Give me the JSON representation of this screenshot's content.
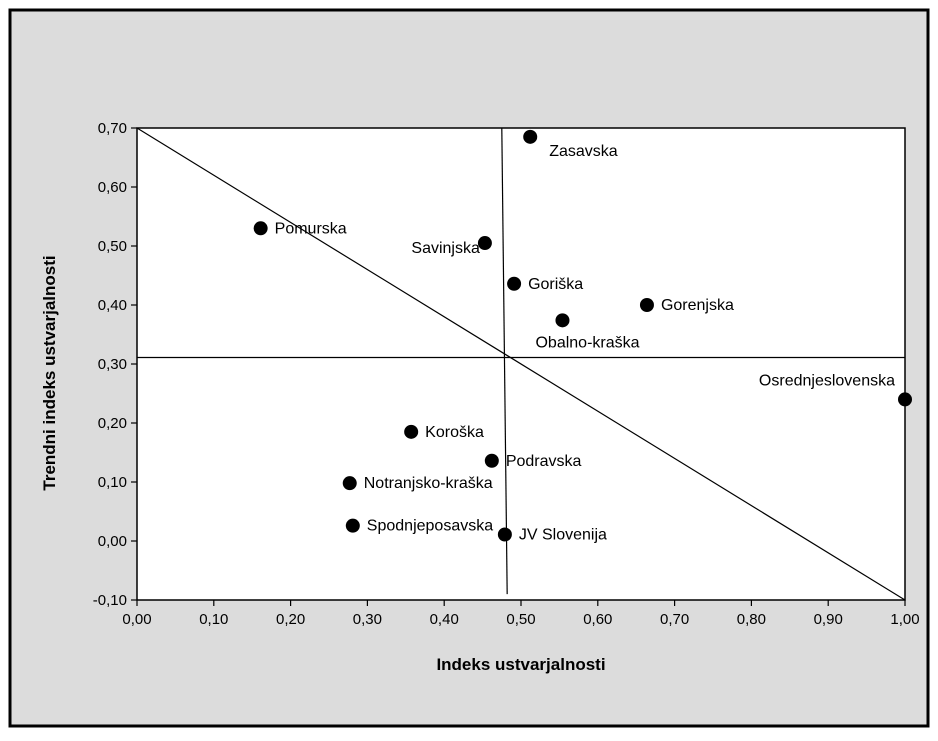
{
  "chart_data": {
    "type": "scatter",
    "title": "",
    "xlabel": "Indeks ustvarjalnosti",
    "ylabel": "Trendni indeks ustvarjalnosti",
    "xlim": [
      0,
      1
    ],
    "ylim": [
      -0.1,
      0.7
    ],
    "xticks": [
      0,
      0.1,
      0.2,
      0.3,
      0.4,
      0.5,
      0.6,
      0.7,
      0.8,
      0.9,
      1.0
    ],
    "yticks": [
      -0.1,
      0,
      0.1,
      0.2,
      0.3,
      0.4,
      0.5,
      0.6,
      0.7
    ],
    "xtick_labels": [
      "0,00",
      "0,10",
      "0,20",
      "0,30",
      "0,40",
      "0,50",
      "0,60",
      "0,70",
      "0,80",
      "0,90",
      "1,00"
    ],
    "ytick_labels": [
      "-0,10",
      "0,00",
      "0,10",
      "0,20",
      "0,30",
      "0,40",
      "0,50",
      "0,60",
      "0,70"
    ],
    "grid": false,
    "points": [
      {
        "label": "Zasavska",
        "x": 0.512,
        "y": 0.685,
        "label_side": "right-below"
      },
      {
        "label": "Pomurska",
        "x": 0.161,
        "y": 0.53,
        "label_side": "right"
      },
      {
        "label": "Savinjska",
        "x": 0.453,
        "y": 0.505,
        "label_side": "left"
      },
      {
        "label": "Goriška",
        "x": 0.491,
        "y": 0.436,
        "label_side": "right"
      },
      {
        "label": "Gorenjska",
        "x": 0.664,
        "y": 0.4,
        "label_side": "right"
      },
      {
        "label": "Obalno-kraška",
        "x": 0.554,
        "y": 0.374,
        "label_side": "below"
      },
      {
        "label": "Osrednjeslovenska",
        "x": 1.0,
        "y": 0.24,
        "label_side": "left-above"
      },
      {
        "label": "Koroška",
        "x": 0.357,
        "y": 0.185,
        "label_side": "right"
      },
      {
        "label": "Podravska",
        "x": 0.462,
        "y": 0.136,
        "label_side": "right"
      },
      {
        "label": "Notranjsko-kraška",
        "x": 0.277,
        "y": 0.098,
        "label_side": "right"
      },
      {
        "label": "Spodnjeposavska",
        "x": 0.281,
        "y": 0.026,
        "label_side": "right"
      },
      {
        "label": "JV Slovenija",
        "x": 0.479,
        "y": 0.011,
        "label_side": "right"
      }
    ],
    "reference_lines": {
      "vertical": {
        "x1": 0.475,
        "y1": 0.7,
        "x2": 0.482,
        "y2": -0.09
      },
      "horizontal": {
        "y": 0.311
      },
      "diagonal": {
        "x1": 0,
        "y1": 0.7,
        "x2": 1.0,
        "y2": -0.1
      }
    },
    "colors": {
      "points": "#000000",
      "frame_bg": "#dcdcdc",
      "plot_bg": "#ffffff"
    }
  }
}
